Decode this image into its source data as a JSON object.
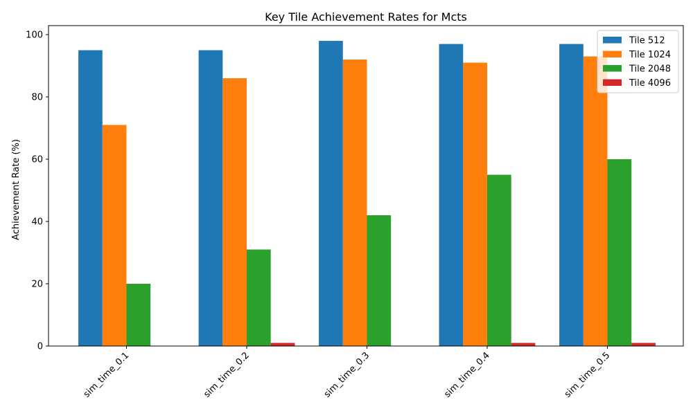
{
  "chart_data": {
    "type": "bar",
    "title": "Key Tile Achievement Rates for Mcts",
    "xlabel": "",
    "ylabel": "Achievement Rate (%)",
    "ylim": [
      0,
      102.9
    ],
    "yticks": [
      0,
      20,
      40,
      60,
      80,
      100
    ],
    "categories": [
      "sim_time_0.1",
      "sim_time_0.2",
      "sim_time_0.3",
      "sim_time_0.4",
      "sim_time_0.5"
    ],
    "series": [
      {
        "name": "Tile 512",
        "color": "#1f77b4",
        "values": [
          95,
          95,
          98,
          97,
          97
        ]
      },
      {
        "name": "Tile 1024",
        "color": "#ff7f0e",
        "values": [
          71,
          86,
          92,
          91,
          93
        ]
      },
      {
        "name": "Tile 2048",
        "color": "#2ca02c",
        "values": [
          20,
          31,
          42,
          55,
          60
        ]
      },
      {
        "name": "Tile 4096",
        "color": "#d62728",
        "values": [
          0,
          1,
          0,
          1,
          1
        ]
      }
    ],
    "grid": false,
    "legend": "top-right"
  }
}
